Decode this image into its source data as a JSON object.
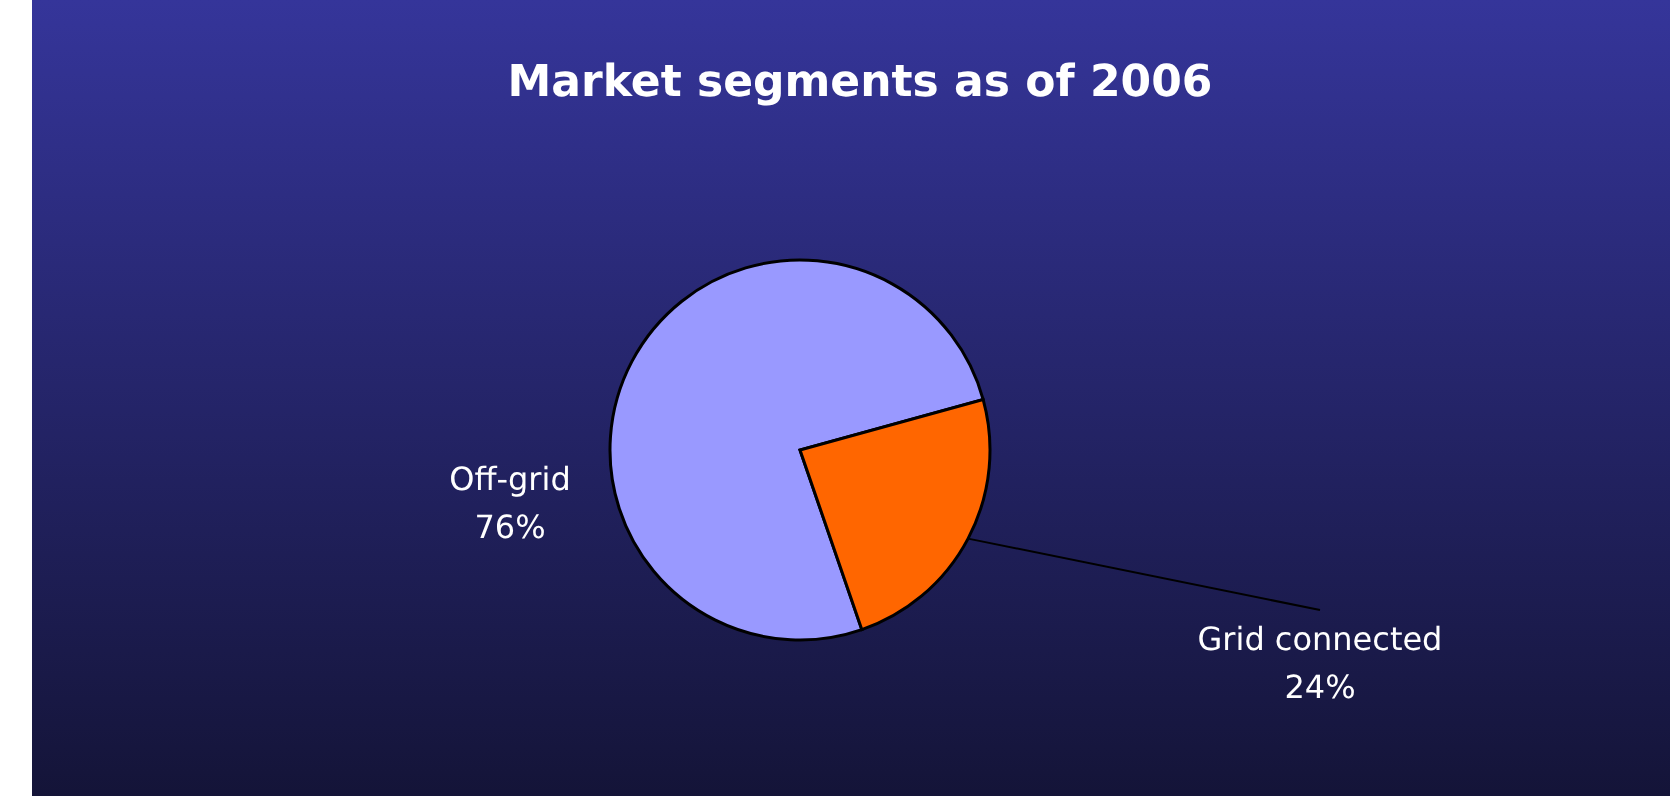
{
  "chart_data": {
    "type": "pie",
    "title": "Market segments as of 2006",
    "categories": [
      "Off-grid",
      "Grid connected"
    ],
    "values": [
      76,
      24
    ],
    "colors": [
      "#9999ff",
      "#ff6600"
    ],
    "value_labels": [
      "76%",
      "24%"
    ]
  }
}
